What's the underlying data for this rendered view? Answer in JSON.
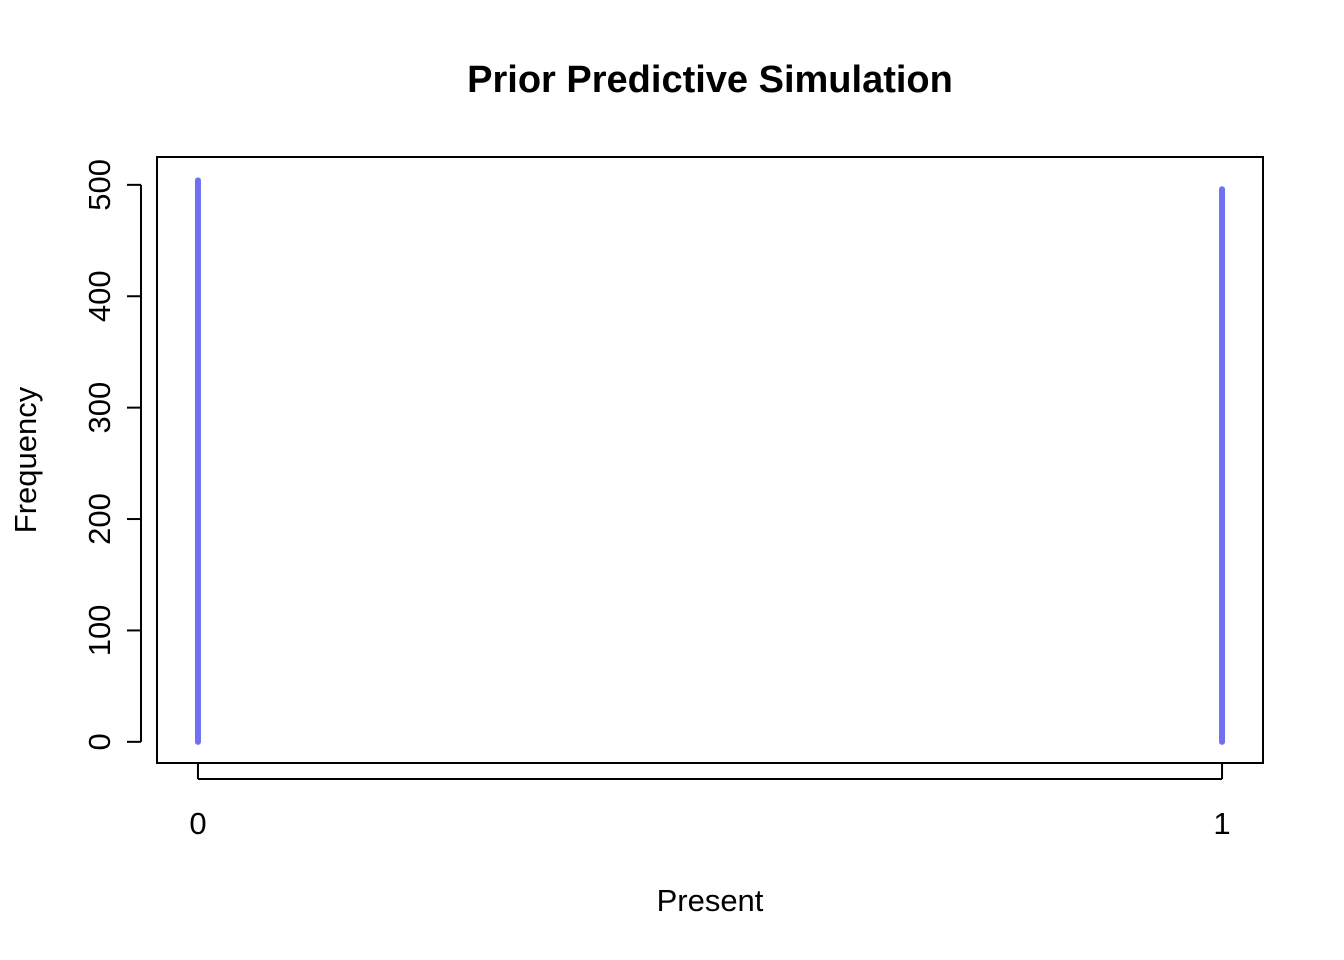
{
  "chart_data": {
    "type": "bar",
    "style": "spike",
    "title": "Prior Predictive Simulation",
    "xlabel": "Present",
    "ylabel": "Frequency",
    "categories": [
      "0",
      "1"
    ],
    "x": [
      0,
      1
    ],
    "values": [
      504,
      496
    ],
    "xlim": [
      -0.04,
      1.04
    ],
    "ylim": [
      -19,
      525
    ],
    "x_ticks": [
      0,
      1
    ],
    "y_ticks": [
      0,
      100,
      200,
      300,
      400,
      500
    ],
    "grid": false,
    "bar_color": "#7070f0"
  }
}
